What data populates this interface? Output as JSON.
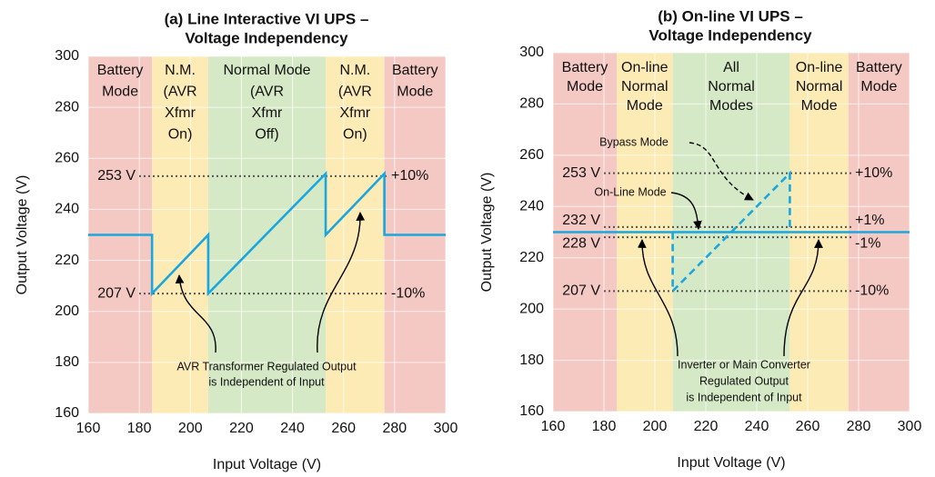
{
  "chart_data": [
    {
      "type": "line",
      "title": [
        "(a) Line Interactive VI UPS –",
        "Voltage Independency"
      ],
      "x_label": "Input Voltage (V)",
      "y_label": "Output Voltage (V)",
      "xlim": [
        160,
        300
      ],
      "ylim": [
        160,
        300
      ],
      "xticks": [
        160,
        180,
        200,
        220,
        240,
        260,
        280,
        300
      ],
      "yticks": [
        160,
        180,
        200,
        220,
        240,
        260,
        280,
        300
      ],
      "grid": true,
      "regions": [
        {
          "label": [
            "Battery",
            "Mode"
          ],
          "from": 160,
          "to": 185,
          "color": "#f4c9c4"
        },
        {
          "label": [
            "N.M.",
            "(AVR",
            "Xfmr",
            "On)"
          ],
          "from": 185,
          "to": 207,
          "color": "#fdebb5"
        },
        {
          "label": [
            "Normal Mode",
            "(AVR",
            "Xfmr",
            "Off)"
          ],
          "from": 207,
          "to": 253,
          "color": "#d6e9c6"
        },
        {
          "label": [
            "N.M.",
            "(AVR",
            "Xfmr",
            "On)"
          ],
          "from": 253,
          "to": 276,
          "color": "#fdebb5"
        },
        {
          "label": [
            "Battery",
            "Mode"
          ],
          "from": 276,
          "to": 300,
          "color": "#f4c9c4"
        }
      ],
      "reference_lines": [
        {
          "value": 253,
          "label": "253 V",
          "right_label": "+10%"
        },
        {
          "value": 207,
          "label": "207 V",
          "right_label": "-10%"
        }
      ],
      "series": [
        {
          "color": "#1aa6df",
          "style": "solid",
          "x": [
            160,
            185,
            185,
            207,
            207,
            253,
            253,
            276,
            276,
            300
          ],
          "values": [
            230,
            230,
            207,
            230,
            207,
            254,
            230,
            254,
            230,
            230
          ]
        }
      ],
      "annotations": [
        [
          "AVR Transformer Regulated Output",
          "is Independent of Input"
        ]
      ]
    },
    {
      "type": "line",
      "title": [
        "(b) On-line VI UPS –",
        "Voltage Independency"
      ],
      "x_label": "Input Voltage (V)",
      "y_label": "Output Voltage (V)",
      "xlim": [
        160,
        300
      ],
      "ylim": [
        160,
        300
      ],
      "xticks": [
        160,
        180,
        200,
        220,
        240,
        260,
        280,
        300
      ],
      "yticks": [
        160,
        180,
        200,
        220,
        240,
        260,
        280,
        300
      ],
      "grid": true,
      "regions": [
        {
          "label": [
            "Battery",
            "Mode"
          ],
          "from": 160,
          "to": 185,
          "color": "#f4c9c4"
        },
        {
          "label": [
            "On-line",
            "Normal",
            "Mode"
          ],
          "from": 185,
          "to": 207,
          "color": "#fdebb5"
        },
        {
          "label": [
            "All",
            "Normal",
            "Modes"
          ],
          "from": 207,
          "to": 253,
          "color": "#d6e9c6"
        },
        {
          "label": [
            "On-line",
            "Normal",
            "Mode"
          ],
          "from": 253,
          "to": 276,
          "color": "#fdebb5"
        },
        {
          "label": [
            "Battery",
            "Mode"
          ],
          "from": 276,
          "to": 300,
          "color": "#f4c9c4"
        }
      ],
      "reference_lines": [
        {
          "value": 253,
          "label": "253 V",
          "right_label": "+10%"
        },
        {
          "value": 232,
          "label": "232 V",
          "right_label": "+1%"
        },
        {
          "value": 228,
          "label": "228 V",
          "right_label": "-1%"
        },
        {
          "value": 207,
          "label": "207 V",
          "right_label": "-10%"
        }
      ],
      "series": [
        {
          "color": "#1aa6df",
          "style": "solid",
          "x": [
            160,
            300
          ],
          "values": [
            230,
            230
          ]
        },
        {
          "color": "#1aa6df",
          "style": "dashed",
          "x": [
            207,
            207,
            253,
            253
          ],
          "values": [
            230,
            207,
            253,
            230
          ]
        }
      ],
      "annotations": [
        [
          "Bypass Mode"
        ],
        [
          "On-Line Mode"
        ],
        [
          "Inverter or Main Converter",
          "Regulated Output",
          "is Independent of Input"
        ]
      ]
    }
  ]
}
